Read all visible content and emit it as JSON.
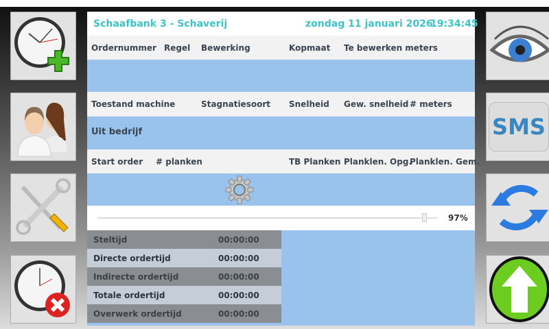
{
  "header": {
    "title": "Schaafbank 3 - Schaverij",
    "date": "zondag 11 januari 2026",
    "time": "19:34:45"
  },
  "order_columns": [
    "Ordernummer",
    "Regel",
    "Bewerking",
    "Kopmaat",
    "Te bewerken meters"
  ],
  "machine_columns": [
    "Toestand machine",
    "Stagnatiesoort",
    "Snelheid",
    "Gew. snelheid",
    "# meters"
  ],
  "machine_state": "Uit bedrijf",
  "start_columns": [
    "Start order",
    "# planken",
    "TB Planken",
    "Planklen. Opg.",
    "Planklen. Gem."
  ],
  "progress": {
    "value": 97,
    "label": "97%"
  },
  "times": [
    {
      "label": "Steltijd",
      "value": "00:00:00"
    },
    {
      "label": "Directe ordertijd",
      "value": "00:00:00"
    },
    {
      "label": "Indirecte ordertijd",
      "value": "00:00:00"
    },
    {
      "label": "Totale ordertijd",
      "value": "00:00:00"
    },
    {
      "label": "Overwerk ordertijd",
      "value": "00:00:00"
    }
  ],
  "left_buttons": [
    "clock-add-icon",
    "users-icon",
    "tools-icon",
    "clock-remove-icon"
  ],
  "right_buttons": [
    "eye-icon",
    "sms-icon",
    "refresh-icon",
    "upload-arrow-icon"
  ],
  "sms_label": "SMS",
  "colors": {
    "accent": "#3cc4c8",
    "panel_blue": "#99c3ec"
  }
}
